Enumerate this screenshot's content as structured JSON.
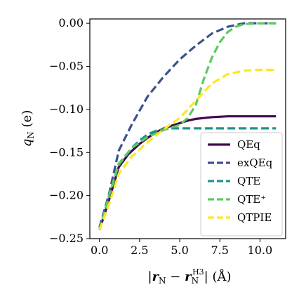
{
  "chart_data": {
    "type": "line",
    "xlabel": "|r_N − r_N^H3| (Å)",
    "ylabel": "q_N (e)",
    "xlim": [
      -0.6,
      11.6
    ],
    "ylim": [
      -0.25,
      0.005
    ],
    "xticks": [
      0.0,
      2.5,
      5.0,
      7.5,
      10.0
    ],
    "xtick_labels": [
      "0.0",
      "2.5",
      "5.0",
      "7.5",
      "10.0"
    ],
    "yticks": [
      0.0,
      -0.05,
      -0.1,
      -0.15,
      -0.2,
      -0.25
    ],
    "ytick_labels": [
      "0.00",
      "−0.05",
      "−0.10",
      "−0.15",
      "−0.20",
      "−0.25"
    ],
    "legend_position": "lower-right",
    "series": [
      {
        "name": "QEq",
        "color": "#440154",
        "dash": "solid",
        "x": [
          0.0,
          0.6,
          1.2,
          1.8,
          2.5,
          3.0,
          3.5,
          4.0,
          4.5,
          5.0,
          5.5,
          6.0,
          6.5,
          7.0,
          8.0,
          9.0,
          10.0,
          11.0
        ],
        "y": [
          -0.24,
          -0.205,
          -0.167,
          -0.152,
          -0.14,
          -0.133,
          -0.127,
          -0.122,
          -0.119,
          -0.116,
          -0.113,
          -0.111,
          -0.11,
          -0.109,
          -0.108,
          -0.108,
          -0.108,
          -0.108
        ]
      },
      {
        "name": "exQEq",
        "color": "#3b528b",
        "dash": "dashed",
        "x": [
          0.0,
          0.6,
          1.2,
          2.0,
          3.0,
          4.0,
          5.0,
          6.0,
          7.0,
          8.0,
          9.0,
          10.0,
          11.0
        ],
        "y": [
          -0.237,
          -0.198,
          -0.148,
          -0.118,
          -0.085,
          -0.062,
          -0.042,
          -0.026,
          -0.012,
          -0.004,
          0.0,
          0.0,
          0.0
        ]
      },
      {
        "name": "QTE",
        "color": "#21918c",
        "dash": "dashed",
        "x": [
          0.0,
          0.6,
          1.2,
          2.0,
          2.5,
          3.0,
          3.5,
          4.0,
          4.5,
          5.0,
          5.5,
          6.0,
          7.0,
          8.0,
          9.0,
          10.0,
          11.0
        ],
        "y": [
          -0.24,
          -0.2,
          -0.165,
          -0.145,
          -0.136,
          -0.129,
          -0.125,
          -0.123,
          -0.122,
          -0.122,
          -0.122,
          -0.122,
          -0.122,
          -0.122,
          -0.122,
          -0.122,
          -0.122
        ]
      },
      {
        "name": "QTE⁺",
        "color": "#5ec962",
        "dash": "dashed",
        "x": [
          0.0,
          0.6,
          1.2,
          2.0,
          3.0,
          4.0,
          4.5,
          5.0,
          5.5,
          6.0,
          6.5,
          7.0,
          7.5,
          8.0,
          8.5,
          9.0,
          10.0,
          11.0
        ],
        "y": [
          -0.24,
          -0.2,
          -0.163,
          -0.145,
          -0.132,
          -0.124,
          -0.121,
          -0.118,
          -0.11,
          -0.095,
          -0.065,
          -0.04,
          -0.022,
          -0.01,
          -0.004,
          -0.001,
          0.0,
          0.0
        ]
      },
      {
        "name": "QTPIE",
        "color": "#fde725",
        "dash": "dashed",
        "x": [
          0.0,
          0.6,
          1.2,
          2.0,
          3.0,
          4.0,
          5.0,
          6.0,
          7.0,
          8.0,
          9.0,
          10.0,
          11.0
        ],
        "y": [
          -0.24,
          -0.21,
          -0.175,
          -0.155,
          -0.138,
          -0.123,
          -0.11,
          -0.09,
          -0.07,
          -0.059,
          -0.055,
          -0.054,
          -0.054
        ]
      }
    ]
  }
}
